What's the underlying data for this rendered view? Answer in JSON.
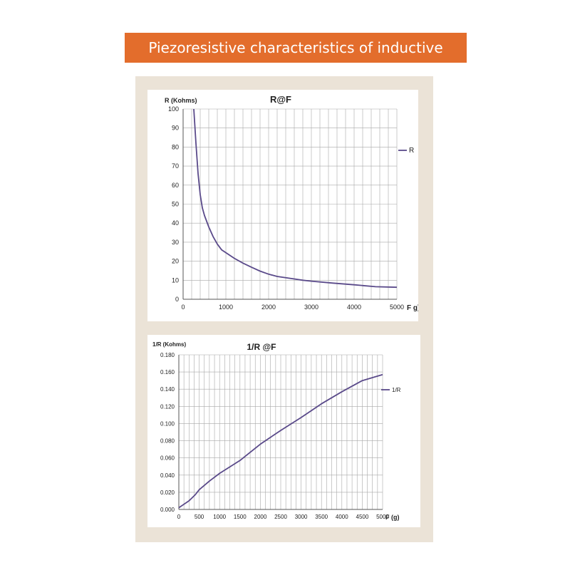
{
  "header": {
    "title": "Piezoresistive characteristics of inductive points"
  },
  "colors": {
    "banner": "#e36d2c",
    "panel": "#ebe3d7",
    "line": "#5a4a8a",
    "grid": "#a8a8a8"
  },
  "chart_data": [
    {
      "type": "line",
      "title": "R@F",
      "ylabel": "R (Kohms)",
      "xlabel": "F g)",
      "xlim": [
        0,
        5000
      ],
      "ylim": [
        0,
        100
      ],
      "x_ticks": [
        0,
        1000,
        2000,
        3000,
        4000,
        5000
      ],
      "y_ticks": [
        0,
        10,
        20,
        30,
        40,
        50,
        60,
        70,
        80,
        90,
        100
      ],
      "grid": true,
      "legend": "right",
      "series": [
        {
          "name": "R",
          "x": [
            250,
            300,
            350,
            400,
            450,
            500,
            600,
            700,
            800,
            900,
            1000,
            1200,
            1400,
            1600,
            1800,
            2000,
            2200,
            2500,
            2800,
            3000,
            3500,
            4000,
            4500,
            5000
          ],
          "y": [
            100,
            82,
            66,
            55,
            48,
            44,
            38,
            33,
            29,
            26,
            24.5,
            21.5,
            19,
            16.8,
            14.8,
            13.2,
            12,
            11,
            10,
            9.5,
            8.5,
            7.6,
            6.6,
            6.3
          ]
        }
      ]
    },
    {
      "type": "line",
      "title": "1/R @F",
      "ylabel": "1/R (Kohms)",
      "xlabel": "F (g)",
      "xlim": [
        0,
        5000
      ],
      "ylim": [
        0,
        0.18
      ],
      "x_ticks": [
        0,
        500,
        1000,
        1500,
        2000,
        2500,
        3000,
        3500,
        4000,
        4500,
        5000
      ],
      "y_ticks": [
        "0.000",
        "0.020",
        "0.040",
        "0.060",
        "0.080",
        "0.100",
        "0.120",
        "0.140",
        "0.160",
        "0.180"
      ],
      "grid": true,
      "legend": "right",
      "series": [
        {
          "name": "1/R",
          "x": [
            0,
            250,
            400,
            500,
            750,
            1000,
            1500,
            2000,
            2250,
            2500,
            3000,
            3500,
            4000,
            4500,
            5000
          ],
          "y": [
            0.002,
            0.01,
            0.017,
            0.023,
            0.033,
            0.042,
            0.057,
            0.076,
            0.084,
            0.092,
            0.107,
            0.123,
            0.137,
            0.15,
            0.157
          ]
        }
      ]
    }
  ]
}
